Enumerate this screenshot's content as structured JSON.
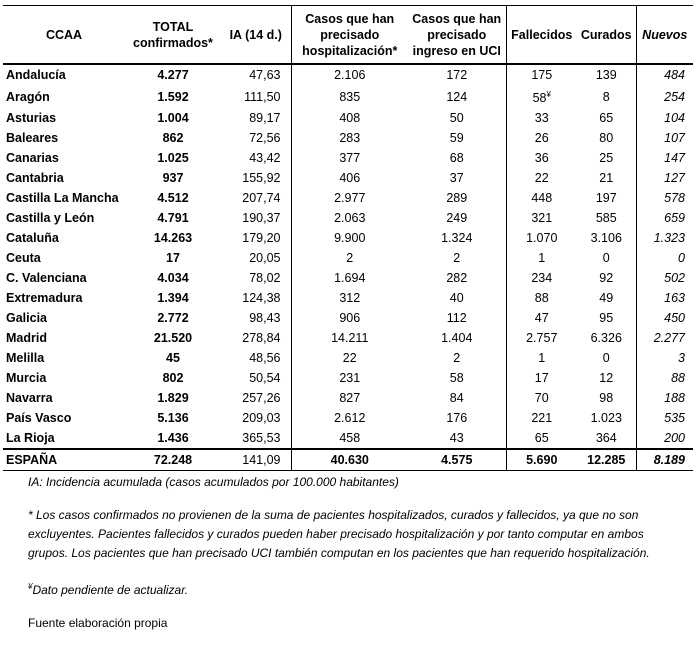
{
  "table": {
    "headers": [
      "CCAA",
      "TOTAL\nconfirmados*",
      "IA (14 d.)",
      "Casos que han\nprecisado\nhospitalización*",
      "Casos que han\nprecisado\ningreso en UCI",
      "Fallecidos",
      "Curados",
      "Nuevos"
    ],
    "rows": [
      [
        "Andalucía",
        "4.277",
        "47,63",
        "2.106",
        "172",
        "175",
        "139",
        "484"
      ],
      [
        "Aragón",
        "1.592",
        "111,50",
        "835",
        "124",
        {
          "text": "58",
          "mark": "¥"
        },
        "8",
        "254"
      ],
      [
        "Asturias",
        "1.004",
        "89,17",
        "408",
        "50",
        "33",
        "65",
        "104"
      ],
      [
        "Baleares",
        "862",
        "72,56",
        "283",
        "59",
        "26",
        "80",
        "107"
      ],
      [
        "Canarias",
        "1.025",
        "43,42",
        "377",
        "68",
        "36",
        "25",
        "147"
      ],
      [
        "Cantabria",
        "937",
        "155,92",
        "406",
        "37",
        "22",
        "21",
        "127"
      ],
      [
        "Castilla La Mancha",
        "4.512",
        "207,74",
        "2.977",
        "289",
        "448",
        "197",
        "578"
      ],
      [
        "Castilla y León",
        "4.791",
        "190,37",
        "2.063",
        "249",
        "321",
        "585",
        "659"
      ],
      [
        "Cataluña",
        "14.263",
        "179,20",
        "9.900",
        "1.324",
        "1.070",
        "3.106",
        "1.323"
      ],
      [
        "Ceuta",
        "17",
        "20,05",
        "2",
        "2",
        "1",
        "0",
        "0"
      ],
      [
        "C. Valenciana",
        "4.034",
        "78,02",
        "1.694",
        "282",
        "234",
        "92",
        "502"
      ],
      [
        "Extremadura",
        "1.394",
        "124,38",
        "312",
        "40",
        "88",
        "49",
        "163"
      ],
      [
        "Galicia",
        "2.772",
        "98,43",
        "906",
        "112",
        "47",
        "95",
        "450"
      ],
      [
        "Madrid",
        "21.520",
        "278,84",
        "14.211",
        "1.404",
        "2.757",
        "6.326",
        "2.277"
      ],
      [
        "Melilla",
        "45",
        "48,56",
        "22",
        "2",
        "1",
        "0",
        "3"
      ],
      [
        "Murcia",
        "802",
        "50,54",
        "231",
        "58",
        "17",
        "12",
        "88"
      ],
      [
        "Navarra",
        "1.829",
        "257,26",
        "827",
        "84",
        "70",
        "98",
        "188"
      ],
      [
        "País Vasco",
        "5.136",
        "209,03",
        "2.612",
        "176",
        "221",
        "1.023",
        "535"
      ],
      [
        "La Rioja",
        "1.436",
        "365,53",
        "458",
        "43",
        "65",
        "364",
        "200"
      ]
    ],
    "total": [
      "ESPAÑA",
      "72.248",
      "141,09",
      "40.630",
      "4.575",
      "5.690",
      "12.285",
      "8.189"
    ]
  },
  "notes": {
    "ia": "IA: Incidencia acumulada (casos acumulados por 100.000 habitantes)",
    "asterisk": "* Los casos confirmados no provienen de la suma de pacientes hospitalizados, curados y fallecidos, ya que no son excluyentes. Pacientes fallecidos y curados pueden haber precisado hospitalización y por tanto computar en ambos grupos. Los pacientes que han precisado UCI también computan en los pacientes que han requerido hospitalización.",
    "pending": {
      "mark": "¥",
      "text": "Dato pendiente de actualizar."
    },
    "source": "Fuente elaboración propia"
  }
}
